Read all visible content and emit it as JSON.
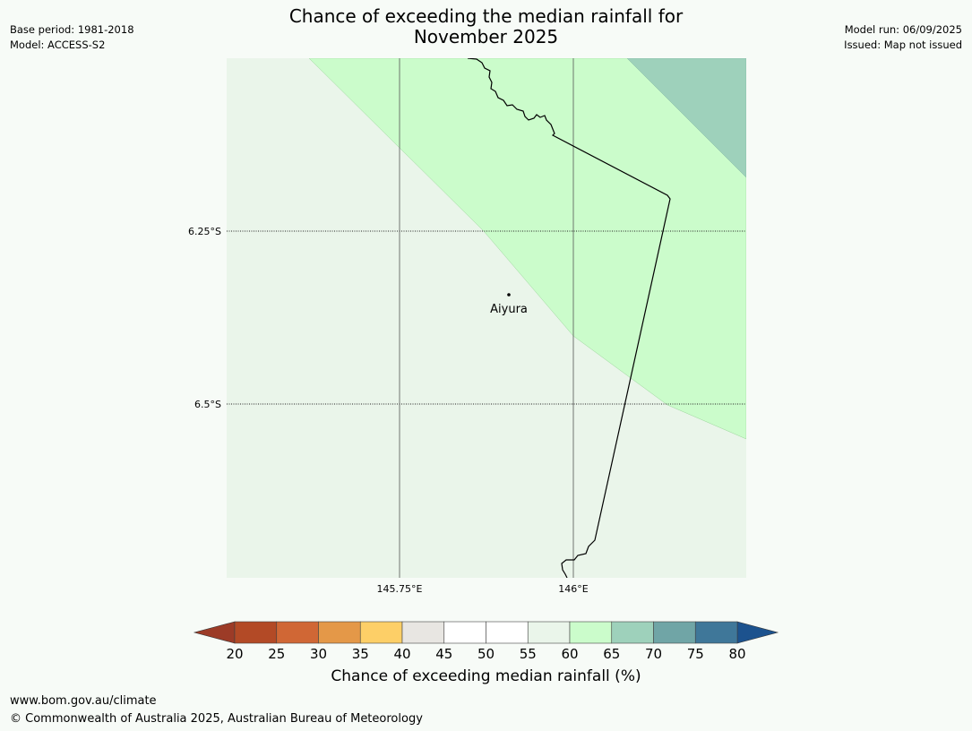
{
  "header": {
    "title_line1": "Chance of exceeding the median rainfall for",
    "title_line2": "November 2025",
    "base_period": "Base period: 1981-2018",
    "model": "Model: ACCESS-S2",
    "model_run": "Model run: 06/09/2025",
    "issued": "Issued: Map not issued"
  },
  "map": {
    "lat_labels": [
      "6.25°S",
      "6.5°S"
    ],
    "lon_labels": [
      "145.75°E",
      "146°E"
    ],
    "place": "Aiyura",
    "colors": {
      "region_55_60": "#eaf5ea",
      "region_60_65": "#cbfccb",
      "region_65_70": "#9ed1bb",
      "coastline": "#000000",
      "gridline": "#555555"
    }
  },
  "legend": {
    "label": "Chance of exceeding median rainfall (%)",
    "ticks": [
      "20",
      "25",
      "30",
      "35",
      "40",
      "45",
      "50",
      "55",
      "60",
      "65",
      "70",
      "75",
      "80"
    ],
    "under_color": "#9c3b27",
    "over_color": "#1c528e",
    "bins": [
      {
        "range": "20-25",
        "color": "#b34a26"
      },
      {
        "range": "25-30",
        "color": "#d06735"
      },
      {
        "range": "30-35",
        "color": "#e49848"
      },
      {
        "range": "35-40",
        "color": "#fdcf67"
      },
      {
        "range": "40-45",
        "color": "#e8e6e2"
      },
      {
        "range": "45-50",
        "color": "#ffffff"
      },
      {
        "range": "50-55",
        "color": "#ffffff"
      },
      {
        "range": "55-60",
        "color": "#eaf5ea"
      },
      {
        "range": "60-65",
        "color": "#cbfccb"
      },
      {
        "range": "65-70",
        "color": "#9ed1bb"
      },
      {
        "range": "70-75",
        "color": "#70a5a6"
      },
      {
        "range": "75-80",
        "color": "#3f7799"
      }
    ]
  },
  "footer": {
    "url": "www.bom.gov.au/climate",
    "copyright": "© Commonwealth of Australia 2025, Australian Bureau of Meteorology"
  }
}
